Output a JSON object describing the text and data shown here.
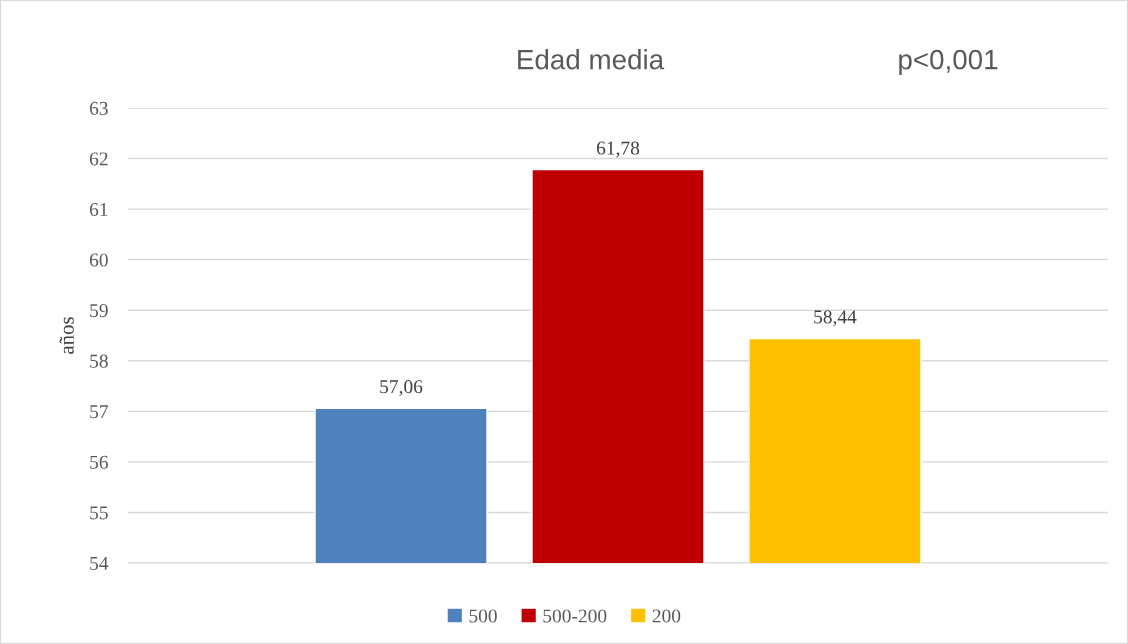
{
  "chart_data": {
    "type": "bar",
    "title": "Edad media",
    "ylabel": "años",
    "annotations": [
      "p<0,001"
    ],
    "categories": [
      null
    ],
    "series": [
      {
        "name": "500",
        "color": "#4f81bd",
        "values": [
          57.06
        ],
        "value_labels": [
          "57,06"
        ]
      },
      {
        "name": "500-200",
        "color": "#c00000",
        "values": [
          61.78
        ],
        "value_labels": [
          "61,78"
        ]
      },
      {
        "name": "200",
        "color": "#ffc000",
        "values": [
          58.44
        ],
        "value_labels": [
          "58,44"
        ]
      }
    ],
    "ylim": [
      54,
      63
    ],
    "yticks": [
      54,
      55,
      56,
      57,
      58,
      59,
      60,
      61,
      62,
      63
    ],
    "grid": "y",
    "legend": "bottom"
  }
}
